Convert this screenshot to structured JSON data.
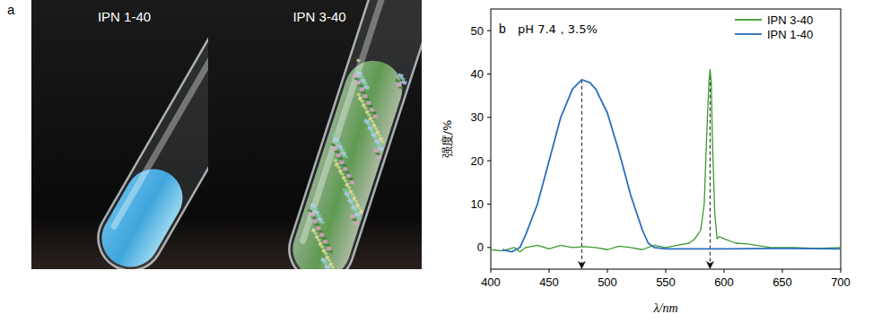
{
  "panel_a": {
    "label": "a",
    "tubes": [
      "IPN 1-40",
      "IPN 3-40"
    ]
  },
  "chart_data": {
    "type": "line",
    "panel_label": "b",
    "annotation": "pH 7.4，3.5%",
    "xlabel": "λ/nm",
    "ylabel": "强度/%",
    "xlim": [
      400,
      700
    ],
    "ylim": [
      -5,
      55
    ],
    "xticks": [
      400,
      450,
      500,
      550,
      600,
      650,
      700
    ],
    "yticks": [
      0,
      10,
      20,
      30,
      40,
      50
    ],
    "legend": "upper right",
    "series": [
      {
        "name": "IPN 3-40",
        "color": "#3c9a2e",
        "x": [
          400,
          410,
          420,
          425,
          430,
          440,
          450,
          460,
          470,
          480,
          490,
          500,
          510,
          520,
          530,
          540,
          550,
          560,
          570,
          575,
          580,
          583,
          585,
          587,
          588,
          589,
          590,
          592,
          594,
          596,
          600,
          610,
          620,
          640,
          660,
          680,
          700
        ],
        "values": [
          -0.5,
          -0.8,
          0,
          -1,
          0,
          0.5,
          -0.3,
          0.5,
          0,
          0.2,
          0,
          -0.5,
          0.3,
          0,
          -0.5,
          0.5,
          0,
          0.5,
          1,
          2,
          4,
          10,
          25,
          38,
          41,
          38,
          25,
          8,
          2,
          2.5,
          2,
          1,
          0.8,
          0,
          0,
          -0.2,
          0
        ]
      },
      {
        "name": "IPN 1-40",
        "color": "#2a6fbd",
        "x": [
          410,
          418,
          425,
          430,
          440,
          450,
          460,
          470,
          478,
          485,
          490,
          500,
          510,
          520,
          530,
          535,
          540,
          550,
          600,
          650,
          700
        ],
        "values": [
          -0.5,
          -1,
          0,
          3,
          10,
          20,
          30,
          36.5,
          38.7,
          38,
          36.5,
          31,
          22,
          12,
          4,
          1,
          0,
          -0.3,
          -0.3,
          -0.2,
          -0.3
        ]
      }
    ],
    "peaks": [
      {
        "x": 478,
        "y": 38.7
      },
      {
        "x": 588,
        "y": 41
      }
    ]
  }
}
